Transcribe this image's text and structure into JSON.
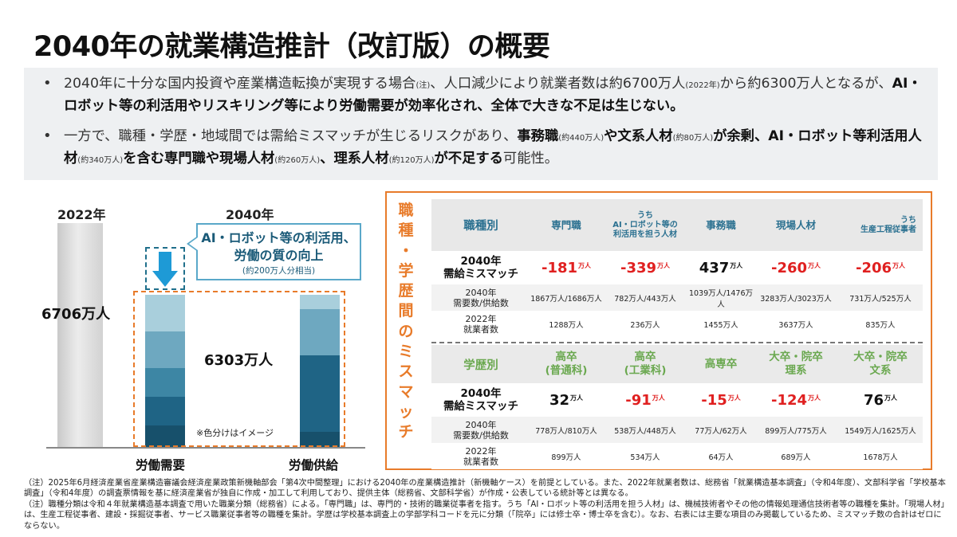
{
  "title": "2040年の就業構造推計（改訂版）の概要",
  "summary": {
    "b1_p1": "2040年に十分な国内投資や産業構造転換が実現する場合",
    "b1_n1": "(注)",
    "b1_p2": "、人口減少により就業者数は約6700万人",
    "b1_n2": "(2022年)",
    "b1_p3": "から約6300万人となるが、",
    "b1_bold": "AI・ロボット等の利活用やリスキリング等により労働需要が効率化され、全体で大きな不足は生じない。",
    "b2_p1": "一方で、職種・学歴・地域間では需給ミスマッチが生じるリスクがあり、",
    "b2_b1": "事務職",
    "b2_n1": "(約440万人)",
    "b2_b2": "や文系人材",
    "b2_n2": "(約80万人)",
    "b2_b3": "が余剰、AI・ロボット等利活用人材",
    "b2_n3": "(約340万人)",
    "b2_b4": "を含む専門職や現場人材",
    "b2_n4": "(約260万人)",
    "b2_b5": "、理系人材",
    "b2_n5": "(約120万人)",
    "b2_b6": "が不足する",
    "b2_p2": "可能性。"
  },
  "left_chart": {
    "year_2022": "2022年",
    "year_2040": "2040年",
    "value_2022": "6706万人",
    "value_2040": "6303万人",
    "callout_main": "AI・ロボット等の利活用、労働の質の向上",
    "callout_sub": "(約200万人分相当)",
    "note": "※色分けはイメージ",
    "x_demand": "労働需要",
    "x_supply": "労働供給",
    "colors": [
      "#a9cfdc",
      "#6ea8c0",
      "#3d86a4",
      "#1f6485",
      "#17506b"
    ]
  },
  "vertical_title": [
    "職",
    "種",
    "・",
    "学",
    "歴",
    "間",
    "の",
    "ミ",
    "ス",
    "マ",
    "ッ",
    "チ"
  ],
  "occupation": {
    "header": "職種別",
    "cols": [
      {
        "top": "",
        "name": "専門職"
      },
      {
        "top": "うち",
        "name": "AI・ロボット等の利活用を担う人材"
      },
      {
        "top": "",
        "name": "事務職"
      },
      {
        "top": "",
        "name": "現場人材"
      },
      {
        "top": "うち",
        "name": "生産工程従事者"
      }
    ],
    "mismatch_label": "2040年\n需給ミスマッチ",
    "mismatch": [
      "-181",
      "-339",
      "437",
      "-260",
      "-206"
    ],
    "unit": "万人",
    "demand_label": "2040年\n需要数/供給数",
    "demand": [
      "1867万人/1686万人",
      "782万人/443万人",
      "1039万人/1476万人",
      "3283万人/3023万人",
      "731万人/525万人"
    ],
    "workers_label": "2022年\n就業者数",
    "workers": [
      "1288万人",
      "236万人",
      "1455万人",
      "3637万人",
      "835万人"
    ]
  },
  "education": {
    "header": "学歴別",
    "cols": [
      {
        "name": "高卒\n(普通科)"
      },
      {
        "name": "高卒\n(工業科)"
      },
      {
        "name": "高専卒"
      },
      {
        "name": "大卒・院卒\n理系"
      },
      {
        "name": "大卒・院卒\n文系"
      }
    ],
    "mismatch_label": "2040年\n需給ミスマッチ",
    "mismatch": [
      "32",
      "-91",
      "-15",
      "-124",
      "76"
    ],
    "unit": "万人",
    "demand_label": "2040年\n需要数/供給数",
    "demand": [
      "778万人/810万人",
      "538万人/448万人",
      "77万人/62万人",
      "899万人/775万人",
      "1549万人/1625万人"
    ],
    "workers_label": "2022年\n就業者数",
    "workers": [
      "899万人",
      "534万人",
      "64万人",
      "689万人",
      "1678万人"
    ]
  },
  "footnotes": [
    "（注）2025年6月経済産業省産業構造審議会経済産業政策新機軸部会「第4次中間整理」における2040年の産業構造推計（新機軸ケース）を前提としている。また、2022年就業者数は、総務省「就業構造基本調査」（令和4年度）、文部科学省「学校基本調査」（令和4年度）の調査票情報を基に経済産業省が独自に作成・加工して利用しており、提供主体（総務省、文部科学省）が作成・公表している統計等とは異なる。",
    "（注）職種分類は令和４年就業構造基本調査で用いた職業分類（総務省）による。「専門職」は、専門的・技術的職業従事者を指す。うち「AI・ロボット等の利活用を担う人材」は、機械技術者やその他の情報処理通信技術者等の職種を集計。「現場人材」は、生産工程従事者、建設・採掘従事者、サービス職業従事者等の職種を集計。学歴は学校基本調査上の学部学科コードを元に分類（「院卒」には修士卒・博士卒を含む）。なお、右表には主要な項目のみ掲載しているため、ミスマッチ数の合計はゼロにならない。"
  ]
}
